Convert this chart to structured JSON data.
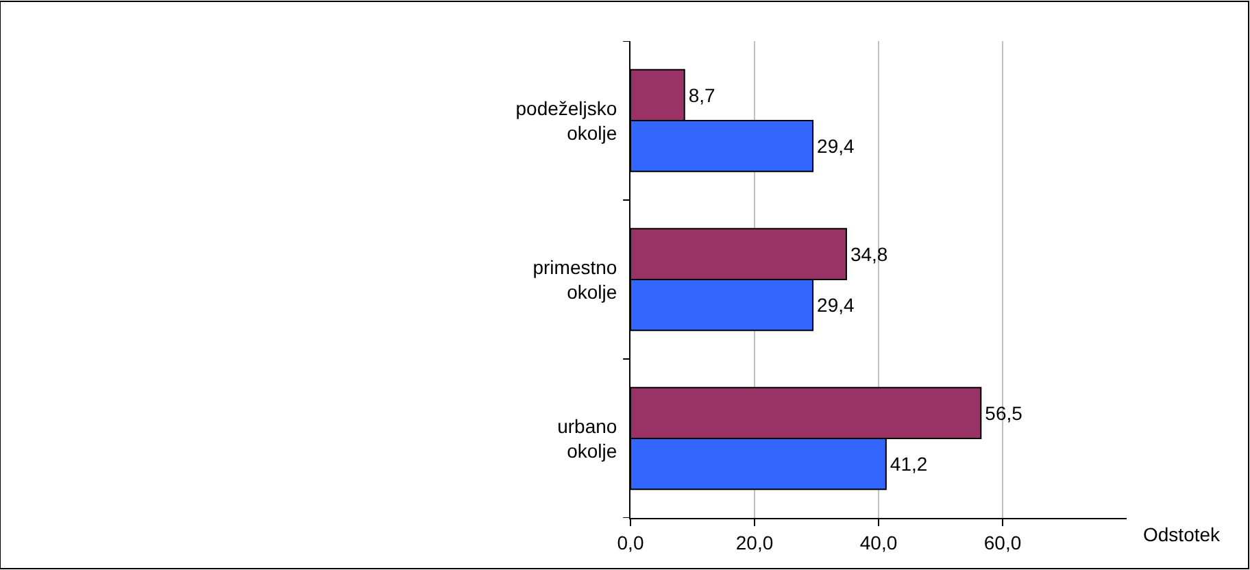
{
  "chart_data": {
    "type": "bar",
    "orientation": "horizontal",
    "categories": [
      "podeželjsko okolje",
      "primestno okolje",
      "urbano okolje"
    ],
    "series": [
      {
        "color": "#993366",
        "values": [
          8.7,
          34.8,
          56.5
        ],
        "value_labels": [
          "8,7",
          "34,8",
          "56,5"
        ]
      },
      {
        "color": "#3366ff",
        "values": [
          29.4,
          29.4,
          41.2
        ],
        "value_labels": [
          "29,4",
          "29,4",
          "41,2"
        ]
      }
    ],
    "xlabel": "Odstotek",
    "xlim": [
      0,
      80
    ],
    "xticks": [
      {
        "value": 0,
        "label": "0,0"
      },
      {
        "value": 20,
        "label": "20,0"
      },
      {
        "value": 40,
        "label": "40,0"
      },
      {
        "value": 60,
        "label": "60,0"
      }
    ],
    "grid": "x"
  }
}
